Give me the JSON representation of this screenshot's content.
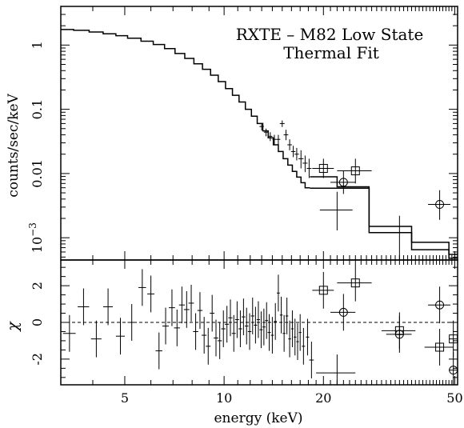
{
  "chart_data": {
    "type": "scatter",
    "annotation": [
      "RXTE – M82 Low State",
      "Thermal Fit"
    ],
    "xlabel": "energy (keV)",
    "x_scale": "log",
    "xlim": [
      3.2,
      51
    ],
    "x_ticks": [
      5,
      10,
      20,
      50
    ],
    "x_tick_labels": [
      "5",
      "10",
      "20",
      "50"
    ],
    "top_panel": {
      "ylabel": "counts/sec/keV",
      "y_scale": "log",
      "ylim": [
        0.00045,
        4.0
      ],
      "y_ticks": [
        1,
        0.1,
        0.01,
        0.001
      ],
      "y_tick_labels": [
        "1",
        "0.1",
        "0.01",
        "10-3"
      ],
      "model": {
        "name": "model",
        "x": [
          3.2,
          3.5,
          3.9,
          4.3,
          4.7,
          5.1,
          5.6,
          6.1,
          6.6,
          7.1,
          7.6,
          8.1,
          8.6,
          9.1,
          9.6,
          10.1,
          10.6,
          11.1,
          11.6,
          12.1,
          12.6,
          13.1,
          13.6,
          14.1,
          14.6,
          15.1,
          15.6,
          16.1,
          16.6,
          17.1,
          17.6,
          18.2
        ],
        "y": [
          1.75,
          1.7,
          1.6,
          1.5,
          1.4,
          1.28,
          1.15,
          1.02,
          0.88,
          0.74,
          0.62,
          0.51,
          0.42,
          0.34,
          0.27,
          0.21,
          0.165,
          0.13,
          0.1,
          0.078,
          0.06,
          0.046,
          0.036,
          0.028,
          0.022,
          0.017,
          0.0135,
          0.0108,
          0.0088,
          0.0072,
          0.006,
          0.0052
        ]
      },
      "model_tail_upper": {
        "x": [
          18.2,
          22,
          22,
          27.5,
          27.5,
          37,
          37,
          48,
          48,
          51
        ],
        "y": [
          0.0089,
          0.0089,
          0.0062,
          0.0062,
          0.0015,
          0.0015,
          0.00085,
          0.00085,
          0.00055,
          0.00055
        ]
      },
      "model_tail_lower": {
        "x": [
          18.2,
          27.5,
          27.5,
          37,
          37,
          48,
          48,
          51
        ],
        "y": [
          0.0059,
          0.0059,
          0.0012,
          0.0012,
          0.00065,
          0.00065,
          0.00048,
          0.00048
        ]
      },
      "data": [
        {
          "x": 13.0,
          "y": 0.054,
          "xerr": 0.2,
          "ylo": 0.047,
          "yhi": 0.061,
          "marker": "none"
        },
        {
          "x": 13.4,
          "y": 0.044,
          "xerr": 0.2,
          "ylo": 0.038,
          "yhi": 0.05,
          "marker": "none"
        },
        {
          "x": 13.8,
          "y": 0.038,
          "xerr": 0.2,
          "ylo": 0.032,
          "yhi": 0.044,
          "marker": "none"
        },
        {
          "x": 14.2,
          "y": 0.034,
          "xerr": 0.2,
          "ylo": 0.028,
          "yhi": 0.04,
          "marker": "none"
        },
        {
          "x": 14.6,
          "y": 0.034,
          "xerr": 0.2,
          "ylo": 0.028,
          "yhi": 0.04,
          "marker": "none"
        },
        {
          "x": 15.0,
          "y": 0.06,
          "xerr": 0.25,
          "ylo": 0.053,
          "yhi": 0.067,
          "marker": "none"
        },
        {
          "x": 15.4,
          "y": 0.04,
          "xerr": 0.25,
          "ylo": 0.033,
          "yhi": 0.048,
          "marker": "none"
        },
        {
          "x": 15.8,
          "y": 0.028,
          "xerr": 0.25,
          "ylo": 0.023,
          "yhi": 0.034,
          "marker": "none"
        },
        {
          "x": 16.2,
          "y": 0.022,
          "xerr": 0.25,
          "ylo": 0.018,
          "yhi": 0.027,
          "marker": "none"
        },
        {
          "x": 16.6,
          "y": 0.02,
          "xerr": 0.25,
          "ylo": 0.016,
          "yhi": 0.025,
          "marker": "none"
        },
        {
          "x": 17.1,
          "y": 0.017,
          "xerr": 0.3,
          "ylo": 0.012,
          "yhi": 0.023,
          "marker": "none"
        },
        {
          "x": 17.6,
          "y": 0.0145,
          "xerr": 0.3,
          "ylo": 0.0105,
          "yhi": 0.019,
          "marker": "none"
        },
        {
          "x": 18.1,
          "y": 0.012,
          "xerr": 0.3,
          "ylo": 0.0085,
          "yhi": 0.017,
          "marker": "none"
        },
        {
          "x": 20.0,
          "y": 0.012,
          "xerr": 1.5,
          "ylo": 0.0085,
          "yhi": 0.017,
          "marker": "square"
        },
        {
          "x": 23.0,
          "y": 0.0073,
          "xerr": 2.0,
          "ylo": 0.0048,
          "yhi": 0.011,
          "marker": "circle"
        },
        {
          "x": 25.0,
          "y": 0.011,
          "xerr": 3.0,
          "ylo": 0.007,
          "yhi": 0.017,
          "marker": "square"
        },
        {
          "x": 22.0,
          "y": 0.0027,
          "xerr": 2.5,
          "ylo": 0.0013,
          "yhi": 0.0052,
          "marker": "none"
        },
        {
          "x": 34.0,
          "y": 0.0012,
          "xerr": 3.0,
          "ylo": 0.00045,
          "yhi": 0.0022,
          "marker": "none"
        },
        {
          "x": 45.0,
          "y": 0.0033,
          "xerr": 3.5,
          "ylo": 0.0019,
          "yhi": 0.0055,
          "marker": "circle"
        }
      ]
    },
    "bottom_panel": {
      "ylabel": "χ",
      "ylim": [
        -3.4,
        3.4
      ],
      "y_ticks": [
        2,
        0,
        -2
      ],
      "y_tick_labels": [
        "2",
        "0",
        "-2"
      ],
      "reference_line": 0,
      "residuals": [
        {
          "x": 3.4,
          "y": -0.6,
          "xerr": 0.15,
          "err": 1.0,
          "marker": "none"
        },
        {
          "x": 3.75,
          "y": 0.85,
          "xerr": 0.15,
          "err": 1.0,
          "marker": "none"
        },
        {
          "x": 4.1,
          "y": -0.9,
          "xerr": 0.15,
          "err": 1.0,
          "marker": "none"
        },
        {
          "x": 4.45,
          "y": 0.85,
          "xerr": 0.15,
          "err": 1.0,
          "marker": "none"
        },
        {
          "x": 4.85,
          "y": -0.75,
          "xerr": 0.15,
          "err": 1.0,
          "marker": "none"
        },
        {
          "x": 5.25,
          "y": 0.0,
          "xerr": 0.15,
          "err": 1.0,
          "marker": "none"
        },
        {
          "x": 5.65,
          "y": 1.9,
          "xerr": 0.15,
          "err": 1.0,
          "marker": "none"
        },
        {
          "x": 6.0,
          "y": 1.55,
          "xerr": 0.15,
          "err": 1.0,
          "marker": "none"
        },
        {
          "x": 6.35,
          "y": -1.55,
          "xerr": 0.15,
          "err": 1.0,
          "marker": "none"
        },
        {
          "x": 6.65,
          "y": -0.2,
          "xerr": 0.15,
          "err": 1.0,
          "marker": "none"
        },
        {
          "x": 6.95,
          "y": 0.8,
          "xerr": 0.15,
          "err": 1.0,
          "marker": "none"
        },
        {
          "x": 7.2,
          "y": -0.3,
          "xerr": 0.15,
          "err": 1.0,
          "marker": "none"
        },
        {
          "x": 7.45,
          "y": 0.95,
          "xerr": 0.15,
          "err": 1.0,
          "marker": "none"
        },
        {
          "x": 7.7,
          "y": 0.7,
          "xerr": 0.15,
          "err": 1.0,
          "marker": "none"
        },
        {
          "x": 7.95,
          "y": 1.05,
          "xerr": 0.15,
          "err": 1.0,
          "marker": "none"
        },
        {
          "x": 8.2,
          "y": -0.5,
          "xerr": 0.15,
          "err": 1.0,
          "marker": "none"
        },
        {
          "x": 8.45,
          "y": 0.65,
          "xerr": 0.15,
          "err": 1.0,
          "marker": "none"
        },
        {
          "x": 8.7,
          "y": -0.7,
          "xerr": 0.15,
          "err": 1.0,
          "marker": "none"
        },
        {
          "x": 8.95,
          "y": -1.3,
          "xerr": 0.15,
          "err": 1.0,
          "marker": "none"
        },
        {
          "x": 9.2,
          "y": 0.5,
          "xerr": 0.15,
          "err": 1.0,
          "marker": "none"
        },
        {
          "x": 9.45,
          "y": -0.85,
          "xerr": 0.15,
          "err": 1.0,
          "marker": "none"
        },
        {
          "x": 9.7,
          "y": -1.0,
          "xerr": 0.15,
          "err": 1.0,
          "marker": "none"
        },
        {
          "x": 9.95,
          "y": -0.35,
          "xerr": 0.15,
          "err": 1.0,
          "marker": "none"
        },
        {
          "x": 10.2,
          "y": -0.1,
          "xerr": 0.15,
          "err": 1.0,
          "marker": "none"
        },
        {
          "x": 10.45,
          "y": 0.25,
          "xerr": 0.15,
          "err": 1.0,
          "marker": "none"
        },
        {
          "x": 10.7,
          "y": -0.6,
          "xerr": 0.15,
          "err": 1.0,
          "marker": "none"
        },
        {
          "x": 10.95,
          "y": 0.15,
          "xerr": 0.15,
          "err": 1.0,
          "marker": "none"
        },
        {
          "x": 11.2,
          "y": -0.35,
          "xerr": 0.15,
          "err": 1.0,
          "marker": "none"
        },
        {
          "x": 11.45,
          "y": 0.3,
          "xerr": 0.15,
          "err": 1.0,
          "marker": "none"
        },
        {
          "x": 11.7,
          "y": -0.2,
          "xerr": 0.15,
          "err": 1.0,
          "marker": "none"
        },
        {
          "x": 11.95,
          "y": -0.5,
          "xerr": 0.15,
          "err": 1.0,
          "marker": "none"
        },
        {
          "x": 12.2,
          "y": 0.35,
          "xerr": 0.15,
          "err": 1.0,
          "marker": "none"
        },
        {
          "x": 12.45,
          "y": -0.15,
          "xerr": 0.15,
          "err": 1.0,
          "marker": "none"
        },
        {
          "x": 12.7,
          "y": 0.15,
          "xerr": 0.15,
          "err": 1.0,
          "marker": "none"
        },
        {
          "x": 12.95,
          "y": -0.4,
          "xerr": 0.15,
          "err": 1.0,
          "marker": "none"
        },
        {
          "x": 13.2,
          "y": -0.25,
          "xerr": 0.15,
          "err": 1.0,
          "marker": "none"
        },
        {
          "x": 13.45,
          "y": 0.1,
          "xerr": 0.15,
          "err": 1.0,
          "marker": "none"
        },
        {
          "x": 13.7,
          "y": -0.55,
          "xerr": 0.15,
          "err": 1.0,
          "marker": "none"
        },
        {
          "x": 14.0,
          "y": -0.7,
          "xerr": 0.15,
          "err": 1.0,
          "marker": "none"
        },
        {
          "x": 14.3,
          "y": 0.05,
          "xerr": 0.15,
          "err": 1.0,
          "marker": "none"
        },
        {
          "x": 14.6,
          "y": 1.6,
          "xerr": 0.15,
          "err": 1.0,
          "marker": "none"
        },
        {
          "x": 14.9,
          "y": 0.4,
          "xerr": 0.15,
          "err": 1.0,
          "marker": "none"
        },
        {
          "x": 15.2,
          "y": -0.6,
          "xerr": 0.15,
          "err": 1.0,
          "marker": "none"
        },
        {
          "x": 15.5,
          "y": 0.35,
          "xerr": 0.15,
          "err": 1.0,
          "marker": "none"
        },
        {
          "x": 15.8,
          "y": -0.9,
          "xerr": 0.15,
          "err": 1.0,
          "marker": "none"
        },
        {
          "x": 16.1,
          "y": -0.35,
          "xerr": 0.15,
          "err": 1.0,
          "marker": "none"
        },
        {
          "x": 16.4,
          "y": -0.8,
          "xerr": 0.15,
          "err": 1.0,
          "marker": "none"
        },
        {
          "x": 16.7,
          "y": -1.05,
          "xerr": 0.15,
          "err": 1.0,
          "marker": "none"
        },
        {
          "x": 17.0,
          "y": -0.55,
          "xerr": 0.15,
          "err": 1.0,
          "marker": "none"
        },
        {
          "x": 17.4,
          "y": -1.3,
          "xerr": 0.2,
          "err": 1.0,
          "marker": "none"
        },
        {
          "x": 17.9,
          "y": -0.8,
          "xerr": 0.2,
          "err": 1.0,
          "marker": "none"
        },
        {
          "x": 18.4,
          "y": -2.05,
          "xerr": 0.3,
          "err": 1.0,
          "marker": "none"
        },
        {
          "x": 20.0,
          "y": 1.75,
          "xerr": 1.5,
          "err": 1.0,
          "marker": "square"
        },
        {
          "x": 23.0,
          "y": 0.55,
          "xerr": 2.0,
          "err": 1.0,
          "marker": "circle"
        },
        {
          "x": 25.0,
          "y": 2.15,
          "xerr": 3.0,
          "err": 1.0,
          "marker": "square"
        },
        {
          "x": 22.0,
          "y": -2.75,
          "xerr": 3.0,
          "err": 1.0,
          "marker": "none"
        },
        {
          "x": 34.0,
          "y": -0.45,
          "xerr": 4.0,
          "err": 1.0,
          "marker": "square"
        },
        {
          "x": 34.0,
          "y": -0.65,
          "xerr": 3.0,
          "err": 1.0,
          "marker": "circle"
        },
        {
          "x": 45.0,
          "y": 0.95,
          "xerr": 3.5,
          "err": 1.0,
          "marker": "circle"
        },
        {
          "x": 45.0,
          "y": -1.35,
          "xerr": 4.5,
          "err": 1.0,
          "marker": "square"
        },
        {
          "x": 49.5,
          "y": -0.9,
          "xerr": 1.5,
          "err": 1.0,
          "marker": "square"
        },
        {
          "x": 49.5,
          "y": -2.6,
          "xerr": 1.5,
          "err": 1.0,
          "marker": "circle"
        }
      ]
    }
  }
}
